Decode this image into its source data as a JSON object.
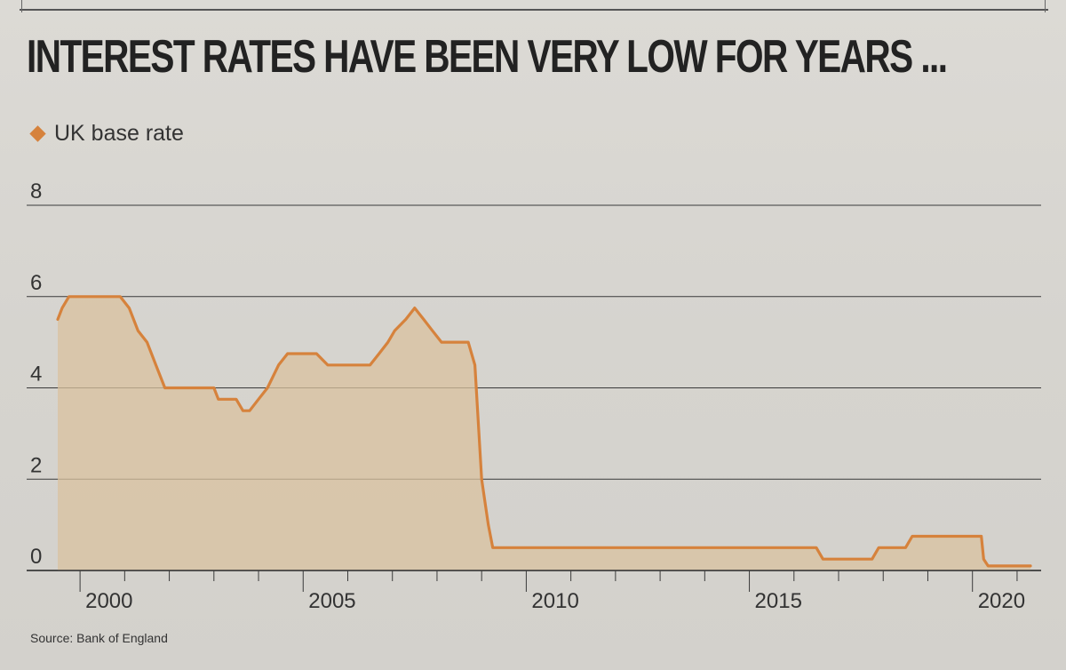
{
  "title": "INTEREST RATES HAVE BEEN VERY LOW FOR YEARS ...",
  "legend": {
    "label": "UK base rate"
  },
  "source": "Source: Bank of England",
  "colors": {
    "line": "#d6823c",
    "fill": "#d9c29f",
    "grid": "#3a3a3a",
    "text": "#333333"
  },
  "chart_data": {
    "type": "area",
    "title": "INTEREST RATES HAVE BEEN VERY LOW FOR YEARS ...",
    "xlabel": "",
    "ylabel": "",
    "xlim": [
      1999.5,
      2021.3
    ],
    "ylim": [
      0,
      8
    ],
    "yticks": [
      "8",
      "6",
      "4",
      "2",
      "0"
    ],
    "ytick_values": [
      8,
      6,
      4,
      2,
      0
    ],
    "xticks": [
      "2000",
      "2005",
      "2010",
      "2015",
      "2020"
    ],
    "xtick_values": [
      2000,
      2005,
      2010,
      2015,
      2020
    ],
    "grid": true,
    "legend_position": "top-left",
    "series": [
      {
        "name": "UK base rate",
        "x": [
          1999.5,
          1999.6,
          1999.75,
          1999.9,
          2000.1,
          2000.9,
          2001.1,
          2001.3,
          2001.5,
          2001.7,
          2001.9,
          2002.1,
          2003.0,
          2003.1,
          2003.5,
          2003.65,
          2003.8,
          2004.0,
          2004.2,
          2004.45,
          2004.65,
          2005.3,
          2005.55,
          2006.5,
          2006.7,
          2006.9,
          2007.05,
          2007.3,
          2007.5,
          2007.7,
          2007.9,
          2008.1,
          2008.7,
          2008.85,
          2009.0,
          2009.15,
          2009.25,
          2016.5,
          2016.65,
          2017.75,
          2017.9,
          2018.5,
          2018.65,
          2020.2,
          2020.25,
          2020.35,
          2021.3
        ],
        "values": [
          5.5,
          5.75,
          6.0,
          6.0,
          6.0,
          6.0,
          5.75,
          5.25,
          5.0,
          4.5,
          4.0,
          4.0,
          4.0,
          3.75,
          3.75,
          3.5,
          3.5,
          3.75,
          4.0,
          4.5,
          4.75,
          4.75,
          4.5,
          4.5,
          4.75,
          5.0,
          5.25,
          5.5,
          5.75,
          5.5,
          5.25,
          5.0,
          5.0,
          4.5,
          2.0,
          1.0,
          0.5,
          0.5,
          0.25,
          0.25,
          0.5,
          0.5,
          0.75,
          0.75,
          0.25,
          0.1,
          0.1
        ]
      }
    ]
  }
}
